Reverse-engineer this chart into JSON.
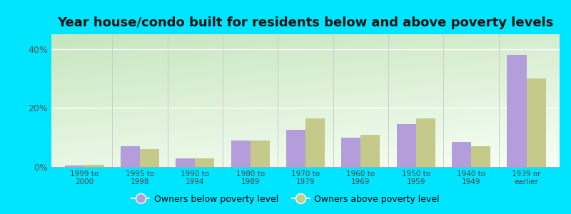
{
  "title": "Year house/condo built for residents below and above poverty levels",
  "categories": [
    "1999 to\n2000",
    "1995 to\n1998",
    "1990 to\n1994",
    "1980 to\n1989",
    "1970 to\n1979",
    "1960 to\n1969",
    "1950 to\n1959",
    "1940 to\n1949",
    "1939 or\nearlier"
  ],
  "below_poverty": [
    0.5,
    7.0,
    3.0,
    9.0,
    12.5,
    10.0,
    14.5,
    8.5,
    38.0
  ],
  "above_poverty": [
    0.8,
    6.0,
    3.0,
    9.0,
    16.5,
    11.0,
    16.5,
    7.0,
    30.0
  ],
  "below_color": "#b39ddb",
  "above_color": "#c5c98a",
  "outer_bg": "#00e5ff",
  "ylim": [
    0,
    45
  ],
  "yticks": [
    0,
    20,
    40
  ],
  "ytick_labels": [
    "0%",
    "20%",
    "40%"
  ],
  "legend_below": "Owners below poverty level",
  "legend_above": "Owners above poverty level",
  "title_fontsize": 13,
  "bar_width": 0.35
}
